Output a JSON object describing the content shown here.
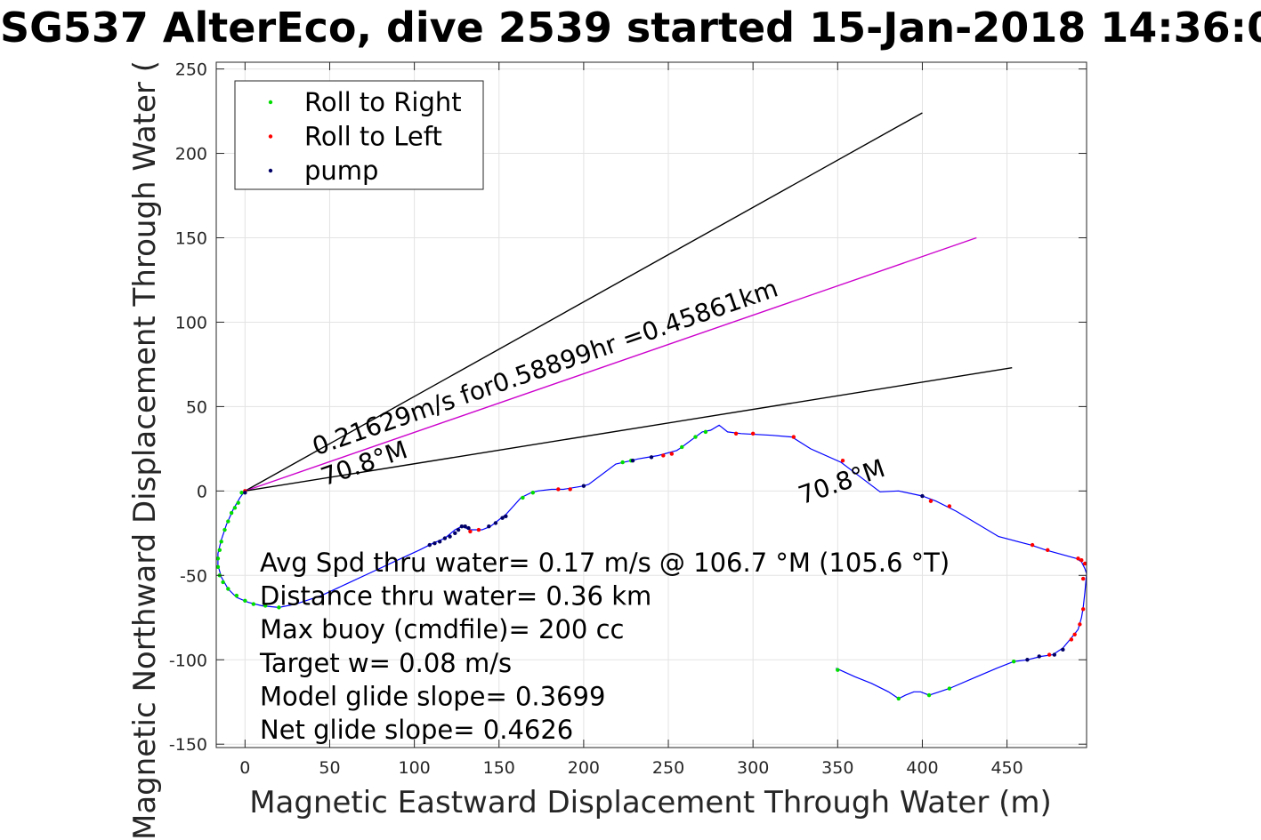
{
  "chart_data": {
    "type": "line",
    "title": "SG537 AlterEco, dive 2539 started 15-Jan-2018 14:36:0",
    "xlabel": "Magnetic Eastward Displacement Through Water (m)",
    "ylabel": "Magnetic Northward Displacement Through Water (",
    "xlim": [
      -17,
      497
    ],
    "ylim": [
      -152,
      254
    ],
    "xticks": [
      0,
      50,
      100,
      150,
      200,
      250,
      300,
      350,
      400,
      450
    ],
    "yticks": [
      -150,
      -100,
      -50,
      0,
      50,
      100,
      150,
      200,
      250
    ],
    "grid": true,
    "legend": {
      "position": "top-left",
      "entries": [
        {
          "label": "Roll to Right",
          "color": "#00dd00"
        },
        {
          "label": "Roll to Left",
          "color": "#ff0000"
        },
        {
          "label": "pump",
          "color": "#000066"
        }
      ]
    },
    "path_color": "#0000ff",
    "track": [
      [
        349,
        -105
      ],
      [
        360,
        -110
      ],
      [
        370,
        -114
      ],
      [
        380,
        -119
      ],
      [
        386,
        -123
      ],
      [
        390,
        -121
      ],
      [
        395,
        -119
      ],
      [
        399,
        -119
      ],
      [
        404,
        -121
      ],
      [
        410,
        -119
      ],
      [
        416,
        -117
      ],
      [
        430,
        -111
      ],
      [
        444,
        -105
      ],
      [
        454,
        -101
      ],
      [
        462,
        -100
      ],
      [
        470,
        -98
      ],
      [
        477,
        -97
      ],
      [
        483,
        -93
      ],
      [
        488,
        -87
      ],
      [
        492,
        -82
      ],
      [
        494,
        -75
      ],
      [
        495,
        -69
      ],
      [
        496,
        -60
      ],
      [
        497,
        -49
      ],
      [
        496,
        -46
      ],
      [
        494,
        -42
      ],
      [
        491,
        -40
      ],
      [
        473,
        -35
      ],
      [
        464,
        -32
      ],
      [
        445,
        -27
      ],
      [
        420,
        -12
      ],
      [
        408,
        -6
      ],
      [
        400,
        -3
      ],
      [
        386,
        0
      ],
      [
        375,
        -0.5
      ],
      [
        352,
        17
      ],
      [
        334,
        25
      ],
      [
        323,
        32
      ],
      [
        311,
        33
      ],
      [
        293,
        34
      ],
      [
        285,
        35
      ],
      [
        280,
        39
      ],
      [
        275,
        36
      ],
      [
        270,
        35
      ],
      [
        258,
        26
      ],
      [
        255,
        24
      ],
      [
        244,
        21
      ],
      [
        238,
        20
      ],
      [
        232,
        19
      ],
      [
        228,
        18
      ],
      [
        219,
        16
      ],
      [
        203,
        4
      ],
      [
        200,
        3
      ],
      [
        188,
        1
      ],
      [
        181,
        1
      ],
      [
        173,
        0
      ],
      [
        169,
        -1
      ],
      [
        163,
        -4
      ],
      [
        154,
        -14
      ],
      [
        150,
        -17
      ],
      [
        145,
        -21
      ],
      [
        140,
        -23
      ],
      [
        133,
        -23
      ],
      [
        128,
        -21
      ],
      [
        124,
        -23
      ],
      [
        118,
        -28
      ],
      [
        111,
        -31
      ],
      [
        103,
        -35
      ],
      [
        90,
        -41
      ],
      [
        75,
        -48
      ],
      [
        60,
        -55
      ],
      [
        45,
        -62
      ],
      [
        30,
        -67
      ],
      [
        20,
        -69
      ],
      [
        10,
        -68
      ],
      [
        2,
        -66
      ],
      [
        -5,
        -63
      ],
      [
        -10,
        -58
      ],
      [
        -14,
        -51
      ],
      [
        -16,
        -44
      ],
      [
        -16,
        -37
      ],
      [
        -14,
        -29
      ],
      [
        -11,
        -20
      ],
      [
        -7,
        -11
      ],
      [
        -3,
        -4
      ],
      [
        0,
        0
      ]
    ],
    "roll_right_points": [
      [
        350,
        -106
      ],
      [
        386,
        -123
      ],
      [
        404,
        -121
      ],
      [
        416,
        -117
      ],
      [
        454,
        -101
      ],
      [
        -2,
        -1
      ],
      [
        -4,
        -7
      ],
      [
        -6,
        -10
      ],
      [
        -8,
        -13
      ],
      [
        -10,
        -18
      ],
      [
        -12,
        -23
      ],
      [
        -14,
        -30
      ],
      [
        -15,
        -35
      ],
      [
        -16,
        -40
      ],
      [
        -16,
        -45
      ],
      [
        -15,
        -50
      ],
      [
        -13,
        -54
      ],
      [
        -10,
        -58
      ],
      [
        -5,
        -62
      ],
      [
        0,
        -65
      ],
      [
        5,
        -67
      ],
      [
        12,
        -68
      ],
      [
        20,
        -69
      ],
      [
        164,
        -4
      ],
      [
        170,
        -1
      ],
      [
        223,
        17
      ],
      [
        228,
        18
      ],
      [
        258,
        26
      ],
      [
        266,
        32
      ],
      [
        272,
        35
      ]
    ],
    "roll_left_points": [
      [
        0,
        0
      ],
      [
        133,
        -24
      ],
      [
        138,
        -23
      ],
      [
        185,
        1
      ],
      [
        192,
        1
      ],
      [
        247,
        21
      ],
      [
        252,
        22
      ],
      [
        290,
        34
      ],
      [
        300,
        34
      ],
      [
        324,
        32
      ],
      [
        353,
        18
      ],
      [
        405,
        -6
      ],
      [
        416,
        -9
      ],
      [
        492,
        -40
      ],
      [
        494,
        -41
      ],
      [
        496,
        -43
      ],
      [
        495,
        -52
      ],
      [
        495,
        -70
      ],
      [
        493,
        -79
      ],
      [
        490,
        -85
      ],
      [
        488,
        -88
      ],
      [
        475,
        -97
      ],
      [
        465,
        -32
      ],
      [
        474,
        -35
      ]
    ],
    "pump_points": [
      [
        0,
        -1
      ],
      [
        109,
        -32
      ],
      [
        112,
        -31
      ],
      [
        115,
        -30
      ],
      [
        118,
        -28
      ],
      [
        121,
        -27
      ],
      [
        124,
        -25
      ],
      [
        126,
        -23
      ],
      [
        128,
        -21
      ],
      [
        130,
        -21
      ],
      [
        132,
        -22
      ],
      [
        144,
        -21
      ],
      [
        148,
        -19
      ],
      [
        152,
        -16
      ],
      [
        154,
        -15
      ],
      [
        400,
        -3
      ],
      [
        462,
        -100
      ],
      [
        469,
        -98
      ],
      [
        478,
        -97
      ],
      [
        483,
        -94
      ],
      [
        200,
        3
      ],
      [
        240,
        20
      ],
      [
        229,
        18
      ]
    ],
    "lines": [
      {
        "from": [
          0,
          0
        ],
        "to": [
          400,
          224
        ],
        "color": "#000000"
      },
      {
        "from": [
          0,
          0
        ],
        "to": [
          432,
          150
        ],
        "color": "#cc00cc"
      },
      {
        "from": [
          0,
          0
        ],
        "to": [
          453,
          73
        ],
        "color": "#000000"
      }
    ],
    "annotations": [
      {
        "text": "0.21629m/s for0.58899hr =0.45861km",
        "at": [
          42,
          21
        ],
        "angle": 19.1
      },
      {
        "text": "70.8°M",
        "at": [
          47,
          3
        ],
        "angle": 19.1
      },
      {
        "text": "70.8°M",
        "at": [
          329,
          -8
        ],
        "angle": 19.1
      }
    ],
    "stats": [
      "Avg Spd thru water=  0.17 m/s @ 106.7 °M (105.6 °T)",
      "Distance thru water=  0.36 km",
      "Max buoy (cmdfile)= 200 cc",
      "Target w= 0.08 m/s",
      "Model glide slope= 0.3699",
      "Net glide slope= 0.4626"
    ]
  }
}
